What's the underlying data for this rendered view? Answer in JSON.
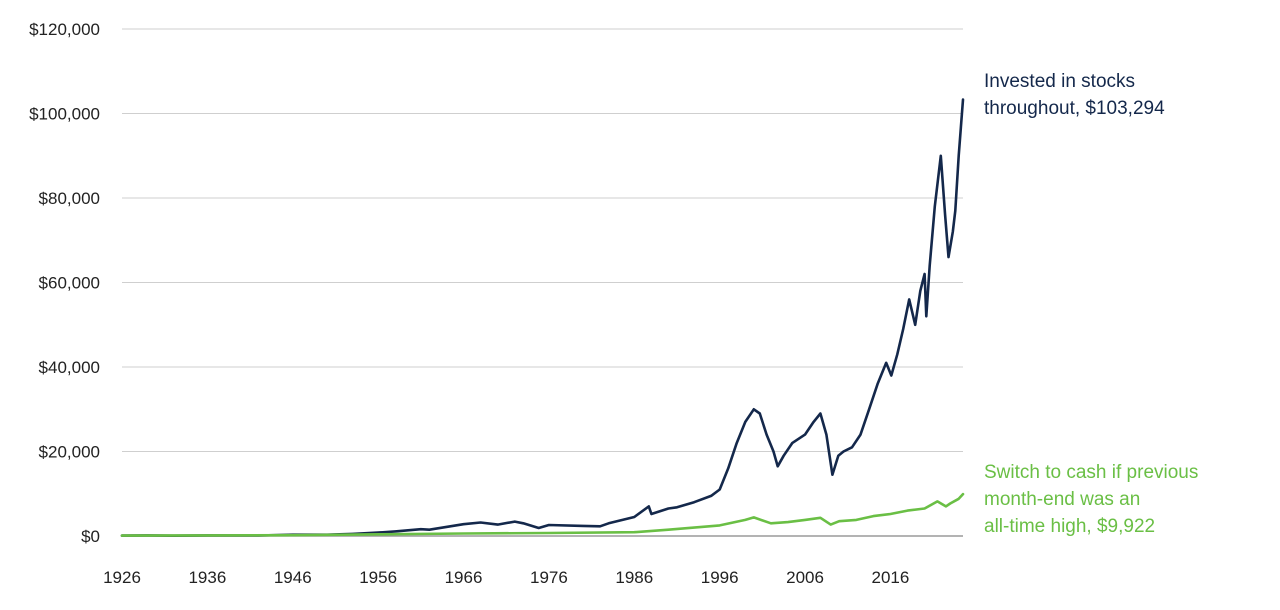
{
  "chart_data": {
    "type": "line",
    "title": "",
    "xlabel": "",
    "ylabel": "",
    "xlim": [
      1926,
      2024.5
    ],
    "ylim": [
      0,
      120000
    ],
    "grid": "horizontal",
    "legend": "direct-labels-right",
    "y_ticks": [
      {
        "value": 0,
        "label": "$0"
      },
      {
        "value": 20000,
        "label": "$20,000"
      },
      {
        "value": 40000,
        "label": "$40,000"
      },
      {
        "value": 60000,
        "label": "$60,000"
      },
      {
        "value": 80000,
        "label": "$80,000"
      },
      {
        "value": 100000,
        "label": "$100,000"
      },
      {
        "value": 120000,
        "label": "$120,000"
      }
    ],
    "x_ticks": [
      {
        "value": 1926,
        "label": "1926"
      },
      {
        "value": 1936,
        "label": "1936"
      },
      {
        "value": 1946,
        "label": "1946"
      },
      {
        "value": 1956,
        "label": "1956"
      },
      {
        "value": 1966,
        "label": "1966"
      },
      {
        "value": 1976,
        "label": "1976"
      },
      {
        "value": 1986,
        "label": "1986"
      },
      {
        "value": 1996,
        "label": "1996"
      },
      {
        "value": 2006,
        "label": "2006"
      },
      {
        "value": 2016,
        "label": "2016"
      }
    ],
    "series": [
      {
        "name": "Invested in stocks throughout, $103,294",
        "label_lines": [
          "Invested in stocks",
          "throughout, $103,294"
        ],
        "color": "#14284b",
        "points": [
          [
            1926,
            100
          ],
          [
            1929,
            150
          ],
          [
            1932,
            80
          ],
          [
            1936,
            150
          ],
          [
            1942,
            120
          ],
          [
            1946,
            300
          ],
          [
            1950,
            300
          ],
          [
            1953,
            500
          ],
          [
            1956,
            800
          ],
          [
            1958,
            1100
          ],
          [
            1961,
            1600
          ],
          [
            1962,
            1500
          ],
          [
            1966,
            2800
          ],
          [
            1968,
            3200
          ],
          [
            1970,
            2700
          ],
          [
            1972,
            3400
          ],
          [
            1973,
            3000
          ],
          [
            1974.8,
            1900
          ],
          [
            1976,
            2600
          ],
          [
            1980,
            2400
          ],
          [
            1982,
            2300
          ],
          [
            1983,
            3000
          ],
          [
            1986,
            4500
          ],
          [
            1987.7,
            7000
          ],
          [
            1988,
            5200
          ],
          [
            1990,
            6500
          ],
          [
            1991,
            6800
          ],
          [
            1993,
            8000
          ],
          [
            1995,
            9500
          ],
          [
            1996,
            11000
          ],
          [
            1997,
            16000
          ],
          [
            1998,
            22000
          ],
          [
            1999,
            27000
          ],
          [
            2000,
            30000
          ],
          [
            2000.7,
            29000
          ],
          [
            2001.5,
            24000
          ],
          [
            2002.3,
            20000
          ],
          [
            2002.8,
            16500
          ],
          [
            2003.5,
            19000
          ],
          [
            2004.5,
            22000
          ],
          [
            2006,
            24000
          ],
          [
            2007,
            27000
          ],
          [
            2007.8,
            29000
          ],
          [
            2008.5,
            24000
          ],
          [
            2009.2,
            14500
          ],
          [
            2009.9,
            19000
          ],
          [
            2010.5,
            20000
          ],
          [
            2011.5,
            21000
          ],
          [
            2012.5,
            24000
          ],
          [
            2013.5,
            30000
          ],
          [
            2014.5,
            36000
          ],
          [
            2015.5,
            41000
          ],
          [
            2016.1,
            38000
          ],
          [
            2016.8,
            43000
          ],
          [
            2017.5,
            49000
          ],
          [
            2018.2,
            56000
          ],
          [
            2018.9,
            50000
          ],
          [
            2019.5,
            58000
          ],
          [
            2020.0,
            62000
          ],
          [
            2020.2,
            52000
          ],
          [
            2020.6,
            64000
          ],
          [
            2021.2,
            78000
          ],
          [
            2021.9,
            90000
          ],
          [
            2022.4,
            76000
          ],
          [
            2022.8,
            66000
          ],
          [
            2023.3,
            72000
          ],
          [
            2023.6,
            77000
          ],
          [
            2024.0,
            90000
          ],
          [
            2024.5,
            103294
          ]
        ]
      },
      {
        "name": "Switch to cash if previous month-end was an all-time high, $9,922",
        "label_lines": [
          "Switch to cash if previous",
          "month-end was an",
          "all-time high, $9,922"
        ],
        "color": "#6abf45",
        "points": [
          [
            1926,
            100
          ],
          [
            1936,
            150
          ],
          [
            1946,
            200
          ],
          [
            1956,
            400
          ],
          [
            1966,
            600
          ],
          [
            1976,
            700
          ],
          [
            1986,
            900
          ],
          [
            1990,
            1500
          ],
          [
            1996,
            2500
          ],
          [
            1999,
            3800
          ],
          [
            2000,
            4400
          ],
          [
            2002,
            3000
          ],
          [
            2004,
            3300
          ],
          [
            2006,
            3800
          ],
          [
            2007.8,
            4300
          ],
          [
            2009,
            2700
          ],
          [
            2010,
            3500
          ],
          [
            2012,
            3800
          ],
          [
            2014,
            4700
          ],
          [
            2016,
            5200
          ],
          [
            2018,
            6000
          ],
          [
            2020,
            6500
          ],
          [
            2021.5,
            8200
          ],
          [
            2022.5,
            7000
          ],
          [
            2023,
            7700
          ],
          [
            2024,
            8800
          ],
          [
            2024.5,
            9922
          ]
        ]
      }
    ]
  }
}
